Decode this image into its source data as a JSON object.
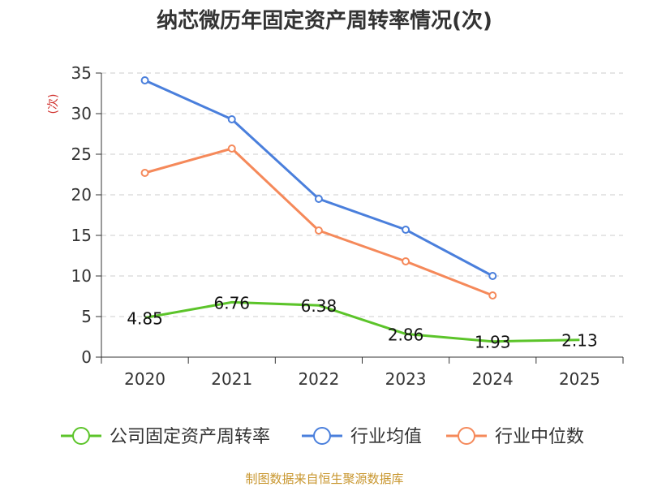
{
  "chart_data": {
    "type": "line",
    "title": "纳芯微历年固定资产周转率情况(次)",
    "ylabel": "(次)",
    "xlabel": "",
    "ylim": [
      0,
      35
    ],
    "yticks": [
      0,
      5,
      10,
      15,
      20,
      25,
      30,
      35
    ],
    "categories": [
      "2020",
      "2021",
      "2022",
      "2023",
      "2024",
      "2025"
    ],
    "grid": true,
    "legend_position": "bottom",
    "series": [
      {
        "name": "公司固定资产周转率",
        "color": "#5cc42a",
        "values": [
          4.85,
          6.76,
          6.38,
          2.86,
          1.93,
          2.13
        ],
        "labels": [
          "4.85",
          "6.76",
          "6.38",
          "2.86",
          "1.93",
          "2.13"
        ],
        "show_labels": true,
        "show_markers": false
      },
      {
        "name": "行业均值",
        "color": "#4a7fdc",
        "values": [
          34.1,
          29.3,
          19.5,
          15.7,
          10.0,
          null
        ],
        "show_labels": false,
        "show_markers": true
      },
      {
        "name": "行业中位数",
        "color": "#f5895a",
        "values": [
          22.7,
          25.7,
          15.6,
          11.8,
          7.6,
          null
        ],
        "show_labels": false,
        "show_markers": true
      }
    ]
  },
  "source_note": "制图数据来自恒生聚源数据库"
}
